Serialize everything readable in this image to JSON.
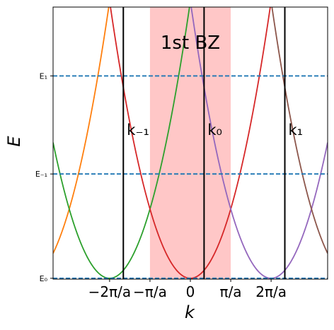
{
  "chart_data": {
    "type": "line",
    "xlabel": "k",
    "ylabel": "E",
    "xlim": [
      -3.4,
      3.4
    ],
    "ylim": [
      -0.02,
      6.5
    ],
    "x_ticks": [
      {
        "value": -2,
        "label": "−2π/a"
      },
      {
        "value": -1,
        "label": "−π/a"
      },
      {
        "value": 0,
        "label": "0"
      },
      {
        "value": 1,
        "label": "π/a"
      },
      {
        "value": 2,
        "label": "2π/a"
      }
    ],
    "y_ticks": [
      {
        "value": 0,
        "label": "E₀"
      },
      {
        "value": 2.5,
        "label": "E₋₁"
      },
      {
        "value": 4.85,
        "label": "E₁"
      }
    ],
    "brillouin_zone": {
      "from": -1,
      "to": 1,
      "color": "#ff9999",
      "label": "1st BZ"
    },
    "vertical_lines": [
      {
        "x": -1.66,
        "label": "k₋₁"
      },
      {
        "x": 0.34,
        "label": "k₀"
      },
      {
        "x": 2.34,
        "label": "k₁"
      }
    ],
    "horizontal_lines": [
      {
        "y": 0
      },
      {
        "y": 2.5
      },
      {
        "y": 4.85
      }
    ],
    "series": [
      {
        "center": -4,
        "color": "#ff7f0e"
      },
      {
        "center": -2,
        "color": "#2ca02c"
      },
      {
        "center": 0,
        "color": "#d62728"
      },
      {
        "center": 2,
        "color": "#9467bd"
      },
      {
        "center": 4,
        "color": "#8c564b"
      }
    ],
    "curve_scale": 1.66,
    "colors": {
      "zone_fill": "#ff9999",
      "dashed": "#1f77b4",
      "vline": "#000000"
    }
  }
}
